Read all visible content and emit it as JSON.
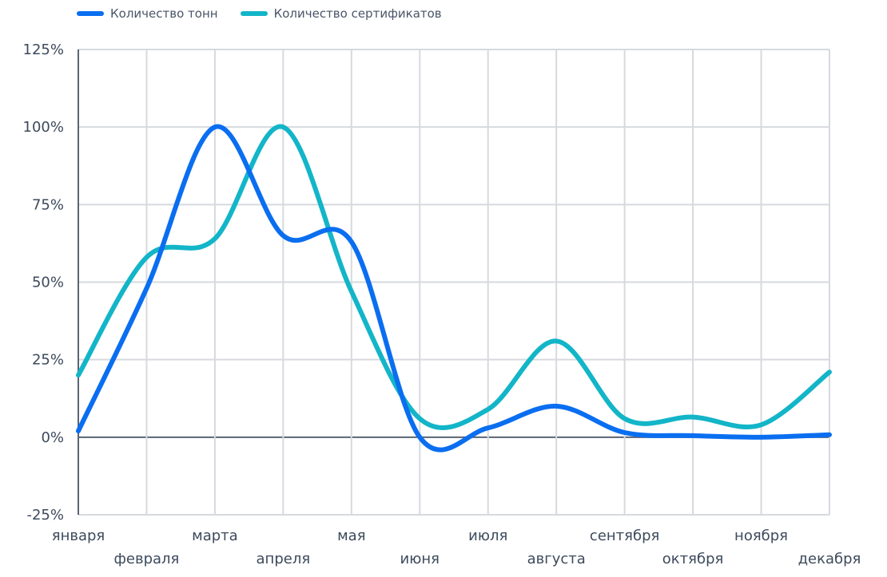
{
  "chart_data": {
    "type": "line",
    "categories": [
      "января",
      "февраля",
      "марта",
      "апреля",
      "мая",
      "июня",
      "июля",
      "августа",
      "сентября",
      "октября",
      "ноября",
      "декабря"
    ],
    "series": [
      {
        "name": "Количество тонн",
        "color": "#0a6ef0",
        "values": [
          2,
          48,
          100,
          65,
          63,
          0,
          3,
          10,
          1.5,
          0.5,
          0,
          0.8
        ]
      },
      {
        "name": "Количество сертификатов",
        "color": "#13b5c8",
        "values": [
          20,
          58,
          64,
          100,
          47,
          6,
          9,
          31,
          6,
          6.5,
          4,
          21
        ]
      }
    ],
    "y_ticks": [
      "-25%",
      "0%",
      "25%",
      "50%",
      "75%",
      "100%",
      "125%"
    ],
    "ylim": [
      -25,
      125
    ],
    "grid": true,
    "legend_position": "top-left",
    "curve": "smooth"
  }
}
